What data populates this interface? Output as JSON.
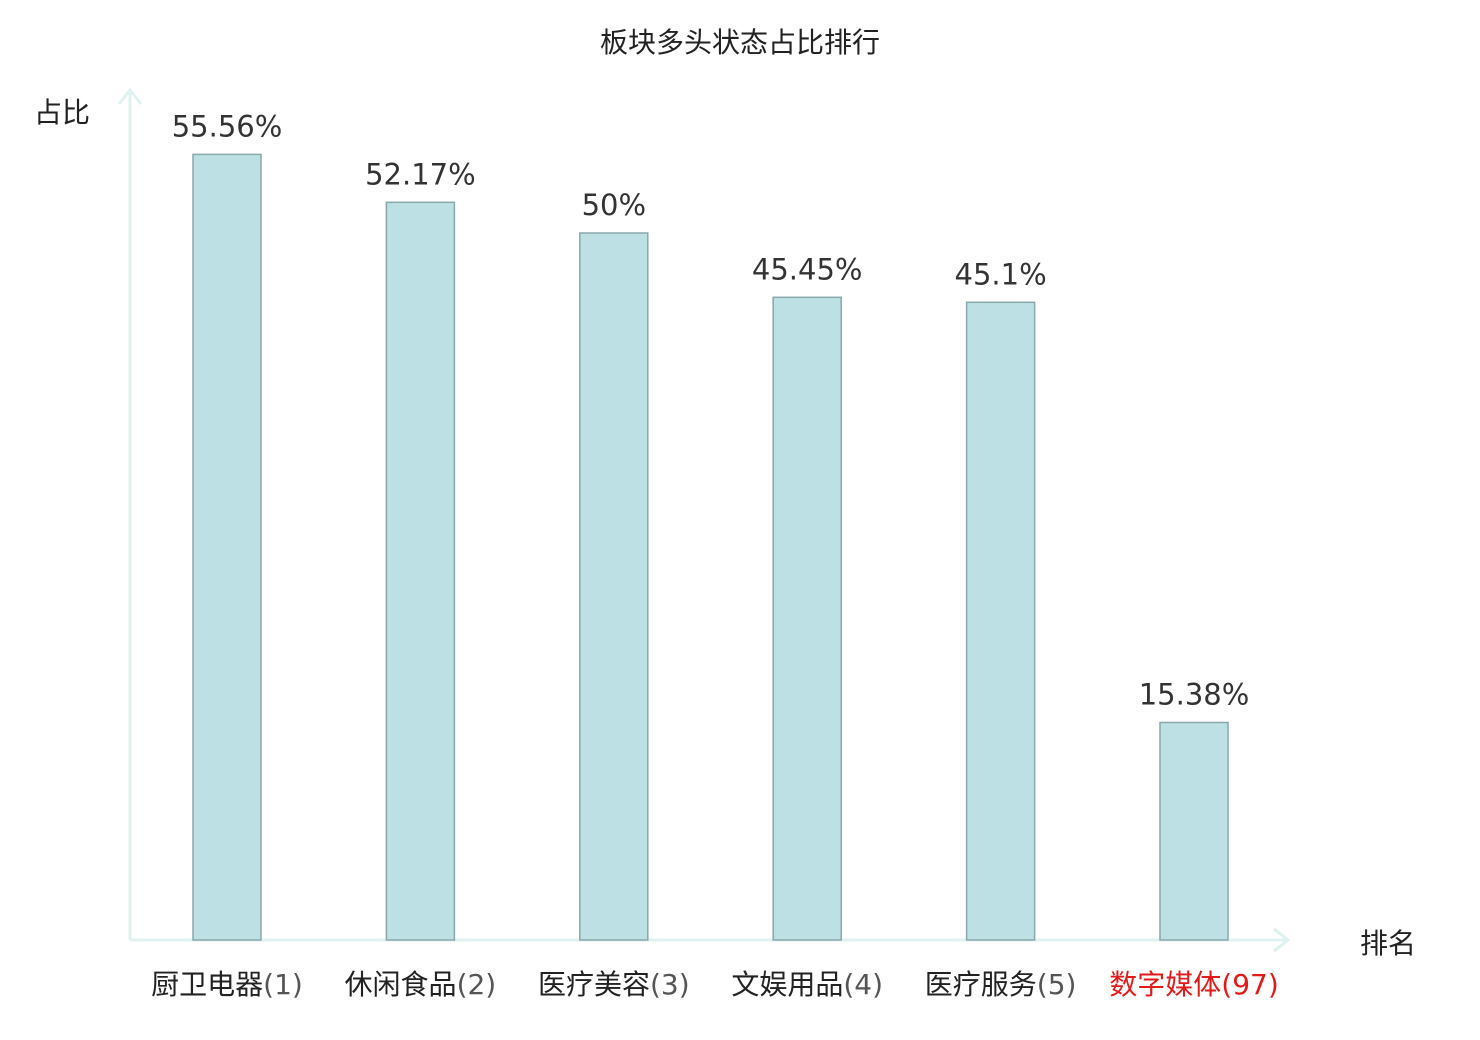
{
  "chart_data": {
    "type": "bar",
    "title": "板块多头状态占比排行",
    "ylabel": "占比",
    "xlabel": "排名",
    "ylim": [
      0,
      60
    ],
    "categories": [
      {
        "name": "厨卫电器",
        "rank": "(1)",
        "highlight": false
      },
      {
        "name": "休闲食品",
        "rank": "(2)",
        "highlight": false
      },
      {
        "name": "医疗美容",
        "rank": "(3)",
        "highlight": false
      },
      {
        "name": "文娱用品",
        "rank": "(4)",
        "highlight": false
      },
      {
        "name": "医疗服务",
        "rank": "(5)",
        "highlight": false
      },
      {
        "name": "数字媒体",
        "rank": "(97)",
        "highlight": true
      }
    ],
    "values": [
      55.56,
      52.17,
      50,
      45.45,
      45.1,
      15.38
    ],
    "value_labels": [
      "55.56%",
      "52.17%",
      "50%",
      "45.45%",
      "45.1%",
      "15.38%"
    ],
    "grid": false,
    "legend": "none"
  },
  "colors": {
    "bar_fill": "#bce0e3",
    "bar_stroke": "#8aa8ab",
    "axis": "#dff2ef",
    "text": "#222222",
    "value_text": "#333333",
    "rank_text": "#555555",
    "highlight": "#e31a1a"
  }
}
